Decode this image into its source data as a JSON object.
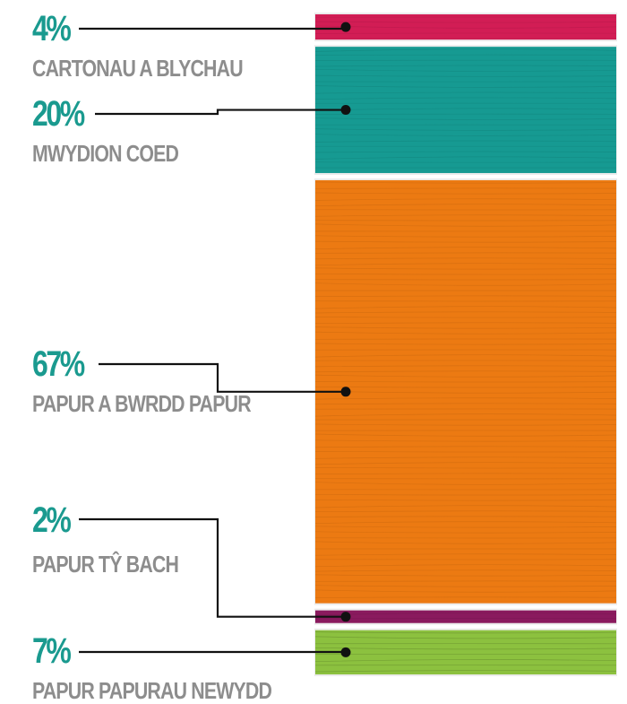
{
  "chart_data": {
    "type": "bar",
    "orientation": "stacked-vertical",
    "unit": "%",
    "categories": [
      "CARTONAU A BLYCHAU",
      "MWYDION COED",
      "PAPUR A BWRDD PAPUR",
      "PAPUR TŶ BACH",
      "PAPUR PAPURAU NEWYDD"
    ],
    "values": [
      4,
      20,
      67,
      2,
      7
    ],
    "value_labels": [
      "4%",
      "20%",
      "67%",
      "2%",
      "7%"
    ],
    "colors": [
      "#d21d55",
      "#169a92",
      "#ec7a12",
      "#8a1a5e",
      "#8cc13f"
    ],
    "legend": "none",
    "grid": false
  }
}
